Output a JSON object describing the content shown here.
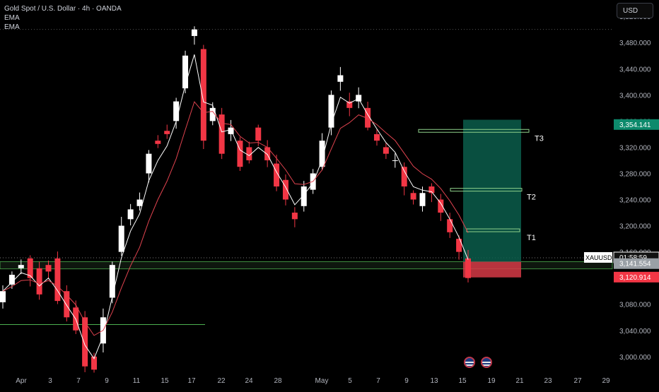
{
  "header": {
    "symbol_title": "Gold Spot / U.S. Dollar · 4h · OANDA",
    "indicator_1": "EMA",
    "indicator_2": "EMA"
  },
  "currency_button": "USD",
  "colors": {
    "background": "#000000",
    "bull": "#ffffff",
    "bear": "#f23645",
    "ema_fast": "#ffffff",
    "ema_slow": "#e0434f",
    "target_line": "#8fd18b",
    "profit_zone": "#0b5d4b",
    "loss_zone": "#d63a47",
    "support_line": "#4caf50"
  },
  "chart_data": {
    "type": "candlestick",
    "symbol": "XAUUSD",
    "timeframe": "4h",
    "y_axis": {
      "ticks": [
        3000,
        3040,
        3080,
        3120,
        3160,
        3200,
        3240,
        3280,
        3320,
        3360,
        3400,
        3440,
        3480,
        3520
      ],
      "tick_labels": [
        "3,000.000",
        "3,040.000",
        "3,080.000",
        "3,120.000",
        "3,160.000",
        "3,200.000",
        "3,240.000",
        "3,280.000",
        "3,320.000",
        "3,360.000",
        "3,400.000",
        "3,440.000",
        "3,480.000",
        "3,520.000"
      ],
      "range": [
        2975,
        3545
      ]
    },
    "x_axis": {
      "labels": [
        "Apr",
        "3",
        "7",
        "9",
        "11",
        "15",
        "17",
        "22",
        "24",
        "28",
        "May",
        "5",
        "7",
        "9",
        "13",
        "15",
        "19",
        "21",
        "23",
        "27",
        "29"
      ]
    },
    "price_path": [
      [
        3083,
        3100
      ],
      [
        3110,
        3125
      ],
      [
        3135,
        3140
      ],
      [
        3150,
        3120
      ],
      [
        3135,
        3095
      ],
      [
        3140,
        3130
      ],
      [
        3150,
        3085
      ],
      [
        3100,
        3060
      ],
      [
        3075,
        3040
      ],
      [
        3060,
        2985
      ],
      [
        3000,
        2980
      ],
      [
        3020,
        3060
      ],
      [
        3090,
        3140
      ],
      [
        3160,
        3200
      ],
      [
        3210,
        3225
      ],
      [
        3230,
        3240
      ],
      [
        3280,
        3310
      ],
      [
        3330,
        3325
      ],
      [
        3345,
        3340
      ],
      [
        3360,
        3390
      ],
      [
        3410,
        3460
      ],
      [
        3490,
        3500
      ],
      [
        3470,
        3330
      ],
      [
        3360,
        3380
      ],
      [
        3370,
        3310
      ],
      [
        3340,
        3350
      ],
      [
        3330,
        3290
      ],
      [
        3320,
        3300
      ],
      [
        3350,
        3330
      ],
      [
        3320,
        3300
      ],
      [
        3295,
        3260
      ],
      [
        3270,
        3240
      ],
      [
        3220,
        3210
      ],
      [
        3230,
        3260
      ],
      [
        3255,
        3280
      ],
      [
        3290,
        3330
      ],
      [
        3350,
        3400
      ],
      [
        3420,
        3430
      ],
      [
        3390,
        3380
      ],
      [
        3390,
        3400
      ],
      [
        3380,
        3350
      ],
      [
        3340,
        3330
      ],
      [
        3320,
        3310
      ],
      [
        3300,
        3300
      ],
      [
        3290,
        3260
      ],
      [
        3250,
        3240
      ],
      [
        3230,
        3250
      ],
      [
        3260,
        3250
      ],
      [
        3240,
        3220
      ],
      [
        3210,
        3190
      ],
      [
        3180,
        3160
      ],
      [
        3150,
        3120
      ]
    ],
    "ema_fast_label": "EMA",
    "ema_slow_label": "EMA",
    "targets": [
      {
        "label": "T3",
        "price": 3345
      },
      {
        "label": "T2",
        "price": 3255
      },
      {
        "label": "T1",
        "price": 3193
      }
    ],
    "position": {
      "entry_top": 3193,
      "entry": 3145,
      "profit_top": 3362,
      "stop": 3121
    },
    "support_level": 3049,
    "range_band": [
      3134,
      3145
    ],
    "dotted_level": 3500,
    "price_labels": [
      {
        "label": "3,354.141",
        "price": 3354.141,
        "color": "#0d8a6c"
      },
      {
        "label": "XAUUSD",
        "price": 3151,
        "color": "#ffffff",
        "text_color": "#000000",
        "timer": "01:58:59"
      },
      {
        "label": "3,141.554",
        "price": 3141.554,
        "color": "#9aa0a6"
      },
      {
        "label": "3,120.914",
        "price": 3120.914,
        "color": "#f23645"
      }
    ],
    "event_flags": 2
  }
}
